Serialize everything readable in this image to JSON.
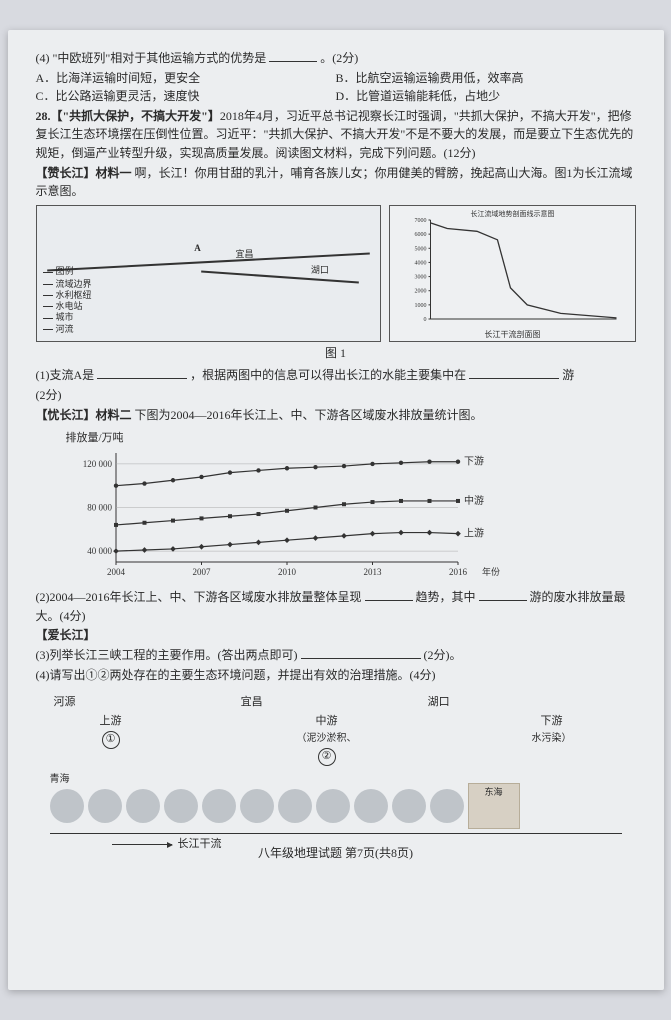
{
  "q4": {
    "stem_prefix": "(4) \"中欧班列\"相对于其他运输方式的优势是",
    "stem_suffix": "。(2分)",
    "options": {
      "A": "A．比海洋运输时间短，更安全",
      "B": "B．比航空运输运输费用低，效率高",
      "C": "C．比公路运输更灵活，速度快",
      "D": "D．比管道运输能耗低，占地少"
    }
  },
  "q28": {
    "head": "28.【\"共抓大保护，不搞大开发\"】",
    "body": "2018年4月，习近平总书记视察长江时强调，\"共抓大保护，不搞大开发\"，把修复长江生态环境摆在压倒性位置。习近平：\"共抓大保护、不搞大开发\"不是不要大的发展，而是要立下生态优先的规矩，倒逼产业转型升级，实现高质量发展。阅读图文材料，完成下列问题。(12分)"
  },
  "praise": {
    "head": "【赞长江】材料一",
    "body": "  啊，长江！你用甘甜的乳汁，哺育各族儿女；你用健美的臂膀，挽起高山大海。图1为长江流域示意图。"
  },
  "fig1": {
    "caption": "图 1",
    "legend_title": "图例",
    "legend_items": [
      "流域边界",
      "水利枢纽",
      "水电站",
      "城市",
      "河流"
    ],
    "labels": {
      "A": "A",
      "yichang": "宜昌",
      "hukou": "湖口"
    },
    "profile": {
      "title": "长江流域地势剖面线示意图",
      "axis_label": "长江干流剖面图",
      "y_max": 7000,
      "y_ticks": [
        0,
        1000,
        2000,
        3000,
        4000,
        5000,
        6000,
        7000
      ],
      "points": [
        {
          "x": 0,
          "y": 6800
        },
        {
          "x": 90,
          "y": 6400
        },
        {
          "x": 250,
          "y": 6200
        },
        {
          "x": 360,
          "y": 5600
        },
        {
          "x": 430,
          "y": 2200
        },
        {
          "x": 520,
          "y": 1000
        },
        {
          "x": 700,
          "y": 400
        },
        {
          "x": 1000,
          "y": 80
        }
      ],
      "colors": {
        "line": "#333",
        "grid": "#999",
        "bg": "#eef0f2"
      }
    }
  },
  "sub1": {
    "prefix": "(1)支流A是",
    "mid": "，根据两图中的信息可以得出长江的水能主要集中在",
    "suffix": "游",
    "score": "(2分)"
  },
  "worry": {
    "head": "【忧长江】材料二",
    "body": "  下图为2004—2016年长江上、中、下游各区域废水排放量统计图。"
  },
  "chart": {
    "y_label": "排放量/万吨",
    "y_ticks": [
      40000,
      80000,
      120000
    ],
    "x_ticks": [
      2004,
      2007,
      2010,
      2013,
      2016
    ],
    "x_label": "年份",
    "series": [
      {
        "name": "下游",
        "color": "#333",
        "style": "solid",
        "marker": "circle",
        "values": [
          100000,
          102000,
          105000,
          108000,
          112000,
          114000,
          116000,
          117000,
          118000,
          120000,
          121000,
          122000,
          122000
        ]
      },
      {
        "name": "中游",
        "color": "#333",
        "style": "solid",
        "marker": "square",
        "values": [
          64000,
          66000,
          68000,
          70000,
          72000,
          74000,
          77000,
          80000,
          83000,
          85000,
          86000,
          86000,
          86000
        ]
      },
      {
        "name": "上游",
        "color": "#333",
        "style": "solid",
        "marker": "diamond",
        "values": [
          40000,
          41000,
          42000,
          44000,
          46000,
          48000,
          50000,
          52000,
          54000,
          56000,
          57000,
          57000,
          56000
        ]
      }
    ],
    "x_domain": [
      2004,
      2016
    ],
    "y_domain": [
      30000,
      130000
    ],
    "background": "#eceef0",
    "grid_color": "#aaa"
  },
  "sub2": {
    "prefix": "(2)2004—2016年长江上、中、下游各区域废水排放量整体呈现",
    "mid": "趋势，其中",
    "suffix": "游的废水排放量最大。(4分)"
  },
  "love_head": "【爱长江】",
  "sub3": {
    "text": "(3)列举长江三峡工程的主要作用。(答出两点即可)",
    "score": "(2分)。"
  },
  "sub4": {
    "text": "(4)请写出①②两处存在的主要生态环境问题，并提出有效的治理措施。(4分)"
  },
  "river_diag": {
    "points": {
      "source": "河源",
      "yichang": "宜昌",
      "hukou": "湖口"
    },
    "segments": [
      {
        "name": "上游",
        "num": "①",
        "note": ""
      },
      {
        "name": "中游",
        "num": "②",
        "note": "（泥沙淤积、"
      },
      {
        "name": "下游",
        "num": "",
        "note": "水污染）"
      }
    ],
    "src_label": "青海",
    "end_label": "东海",
    "arrow_label": "长江干流",
    "dot_color": "#bfc4c9",
    "dot_count": 11
  },
  "footer": "八年级地理试题  第7页(共8页)"
}
